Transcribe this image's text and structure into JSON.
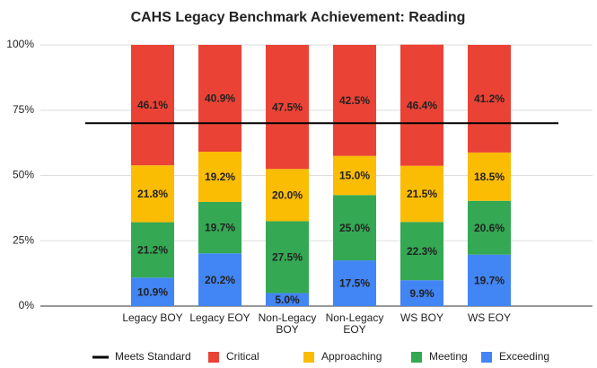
{
  "chart_data": {
    "type": "stacked_bar",
    "title": "CAHS Legacy Benchmark Achievement: Reading",
    "categories": [
      "Legacy BOY",
      "Legacy EOY",
      "Non-Legacy BOY",
      "Non-Legacy EOY",
      "WS BOY",
      "WS EOY"
    ],
    "series": [
      {
        "name": "Exceeding",
        "color": "#4285f4",
        "values": [
          10.9,
          20.2,
          5.0,
          17.5,
          9.9,
          19.7
        ],
        "value_labels": [
          "10.9%",
          "20.2%",
          "5.0%",
          "17.5%",
          "9.9%",
          "19.7%"
        ]
      },
      {
        "name": "Meeting",
        "color": "#34a853",
        "values": [
          21.2,
          19.7,
          27.5,
          25.0,
          22.3,
          20.6
        ],
        "value_labels": [
          "21.2%",
          "19.7%",
          "27.5%",
          "25.0%",
          "22.3%",
          "20.6%"
        ]
      },
      {
        "name": "Approaching",
        "color": "#fbbc04",
        "values": [
          21.8,
          19.2,
          20.0,
          15.0,
          21.5,
          18.5
        ],
        "value_labels": [
          "21.8%",
          "19.2%",
          "20.0%",
          "15.0%",
          "21.5%",
          "18.5%"
        ]
      },
      {
        "name": "Critical",
        "color": "#ea4335",
        "values": [
          46.1,
          40.9,
          47.5,
          42.5,
          46.4,
          41.2
        ],
        "value_labels": [
          "46.1%",
          "40.9%",
          "47.5%",
          "42.5%",
          "46.4%",
          "41.2%"
        ]
      }
    ],
    "reference_line": {
      "name": "Meets Standard",
      "value": 70,
      "color": "#000000"
    },
    "legend_order": [
      "reference_line",
      3,
      2,
      1,
      0
    ],
    "legend": "bottom",
    "ylim": [
      0,
      100
    ],
    "yticks": [
      {
        "value": 0,
        "label": "0%"
      },
      {
        "value": 25,
        "label": "25%"
      },
      {
        "value": 50,
        "label": "50%"
      },
      {
        "value": 75,
        "label": "75%"
      },
      {
        "value": 100,
        "label": "100%"
      }
    ],
    "grid": true
  }
}
